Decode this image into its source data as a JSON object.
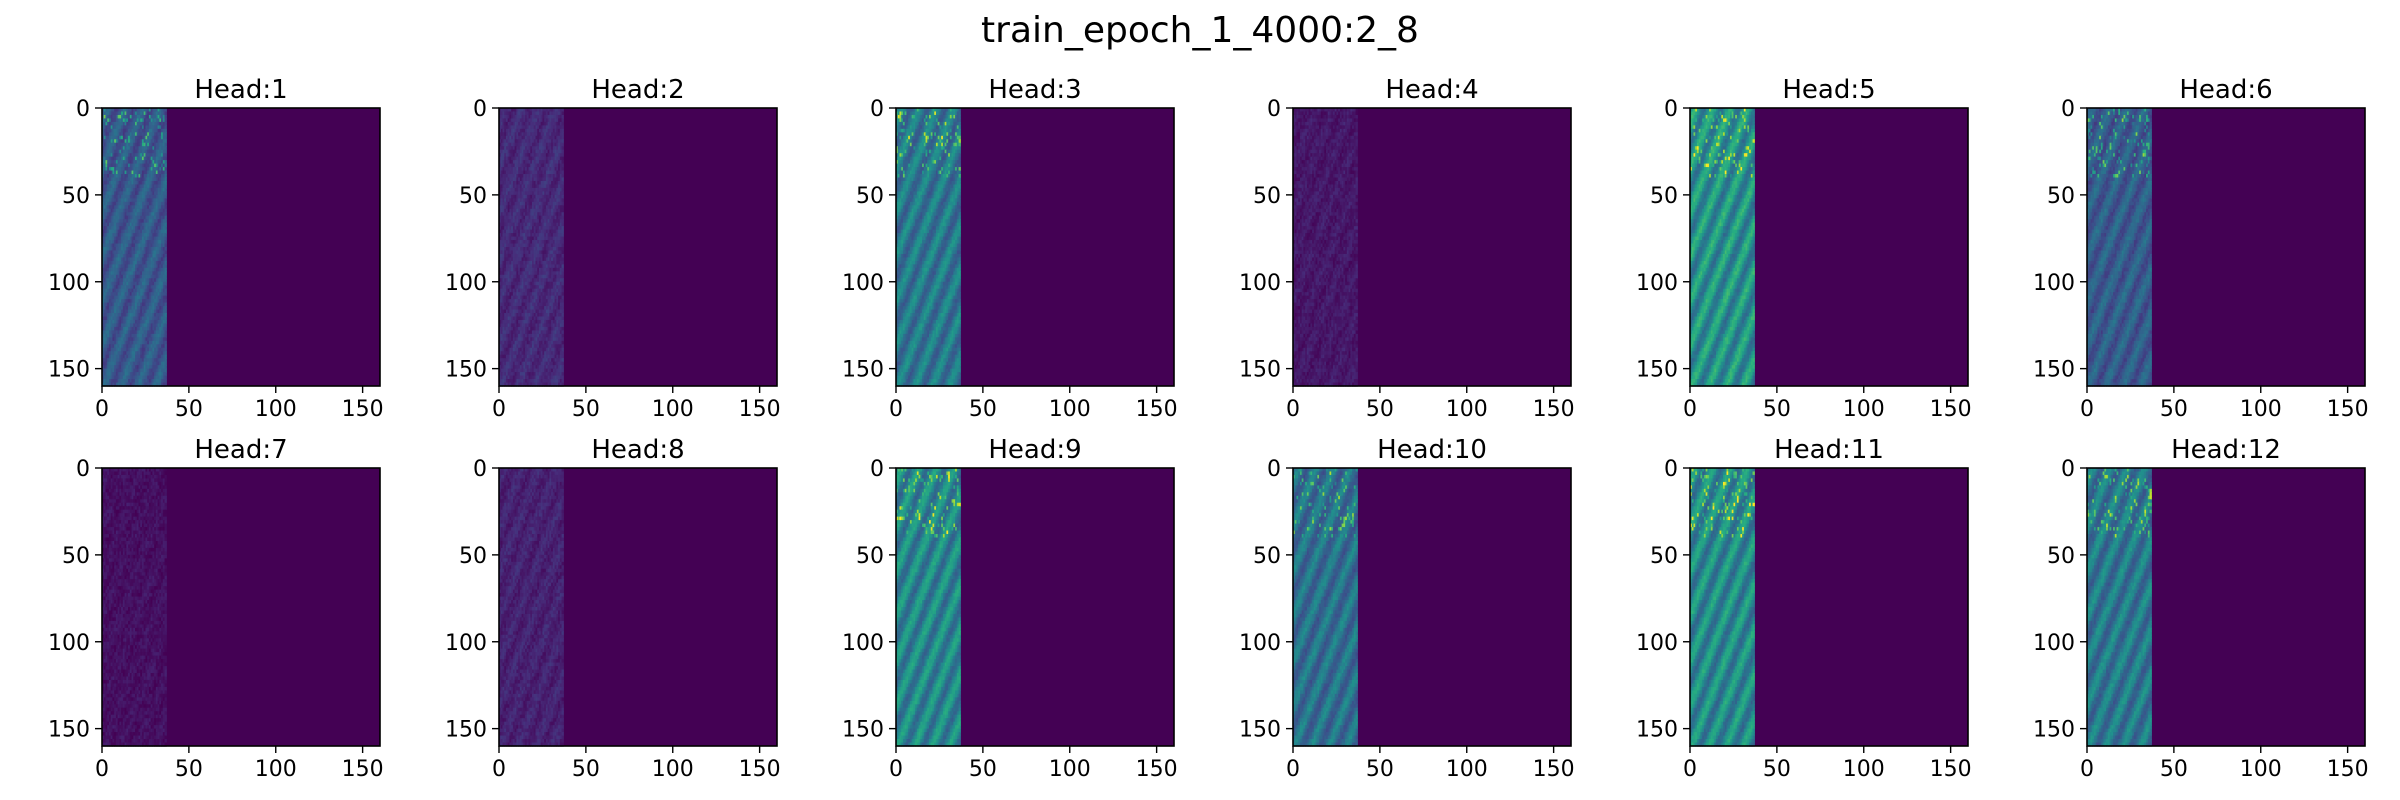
{
  "figure": {
    "title": "train_epoch_1_4000:2_8"
  },
  "colors": {
    "background": "#440154",
    "frame": "#000000"
  },
  "chart_data": {
    "type": "heatmap",
    "layout": "2x6 grid",
    "colormap": "viridis",
    "xlim": [
      0,
      160
    ],
    "ylim": [
      160,
      0
    ],
    "x_ticks": [
      "0",
      "50",
      "100",
      "150"
    ],
    "y_ticks": [
      "0",
      "50",
      "100",
      "150"
    ],
    "active_columns": 37,
    "grid": false,
    "panels": [
      {
        "title": "Head:1",
        "row": 0,
        "col": 0,
        "intensity": 0.36,
        "top_noise": true
      },
      {
        "title": "Head:2",
        "row": 0,
        "col": 1,
        "intensity": 0.16,
        "top_noise": false
      },
      {
        "title": "Head:3",
        "row": 0,
        "col": 2,
        "intensity": 0.52,
        "top_noise": true
      },
      {
        "title": "Head:4",
        "row": 0,
        "col": 3,
        "intensity": 0.09,
        "top_noise": false
      },
      {
        "title": "Head:5",
        "row": 0,
        "col": 4,
        "intensity": 0.66,
        "top_noise": true
      },
      {
        "title": "Head:6",
        "row": 0,
        "col": 5,
        "intensity": 0.38,
        "top_noise": true
      },
      {
        "title": "Head:7",
        "row": 1,
        "col": 0,
        "intensity": 0.06,
        "top_noise": false
      },
      {
        "title": "Head:8",
        "row": 1,
        "col": 1,
        "intensity": 0.13,
        "top_noise": false
      },
      {
        "title": "Head:9",
        "row": 1,
        "col": 2,
        "intensity": 0.6,
        "top_noise": true
      },
      {
        "title": "Head:10",
        "row": 1,
        "col": 3,
        "intensity": 0.48,
        "top_noise": true
      },
      {
        "title": "Head:11",
        "row": 1,
        "col": 4,
        "intensity": 0.62,
        "top_noise": true
      },
      {
        "title": "Head:12",
        "row": 1,
        "col": 5,
        "intensity": 0.52,
        "top_noise": true
      }
    ]
  }
}
